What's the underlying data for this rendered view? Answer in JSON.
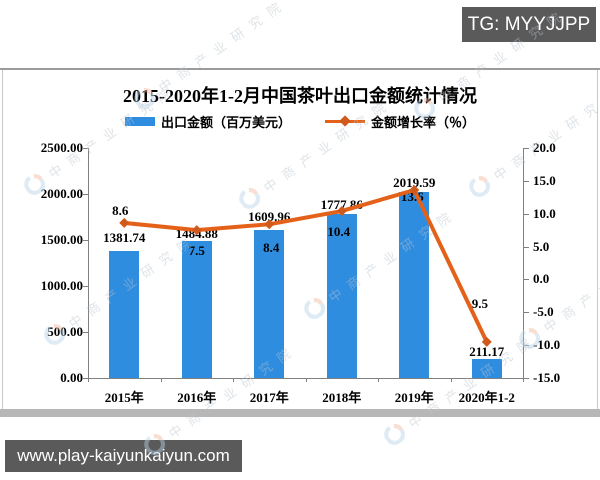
{
  "badges": {
    "tg": "TG: MYYJJPP",
    "url": "www.play-kaiyunkaiyun.com"
  },
  "watermark": {
    "text": "中商产业研究院"
  },
  "chart_data": {
    "type": "bar",
    "combo": "bar+line",
    "title": "2015-2020年1-2月中国茶叶出口金额统计情况",
    "categories": [
      "2015年",
      "2016年",
      "2017年",
      "2018年",
      "2019年",
      "2020年1-2"
    ],
    "series": [
      {
        "name": "出口金额（百万美元）",
        "type": "bar",
        "axis": "left",
        "color": "#2F8DE0",
        "values": [
          1381.74,
          1484.88,
          1609.96,
          1777.86,
          2019.59,
          211.17
        ],
        "labels": [
          "1381.74",
          "1484.88",
          "1609.96",
          "1777.86",
          "2019.59",
          "211.17"
        ]
      },
      {
        "name": "金额增长率（％）",
        "type": "line",
        "axis": "right",
        "color": "#E4611A",
        "marker_color": "#D0591C",
        "values": [
          8.6,
          7.5,
          8.4,
          10.4,
          13.6,
          -9.5
        ],
        "labels": [
          "8.6",
          "7.5",
          "8.4",
          "10.4",
          "13.6",
          "-9.5"
        ]
      }
    ],
    "left_axis": {
      "min": 0,
      "max": 2500,
      "step": 500,
      "ticks": [
        "2500.00",
        "2000.00",
        "1500.00",
        "1000.00",
        "500.00",
        "0.00"
      ]
    },
    "right_axis": {
      "min": -15,
      "max": 20,
      "step": 5,
      "ticks": [
        "20.0",
        "15.0",
        "10.0",
        "5.0",
        "0.0",
        "-5.0",
        "-10.0",
        "-15.0"
      ]
    },
    "legend_position": "top",
    "grid": false
  }
}
